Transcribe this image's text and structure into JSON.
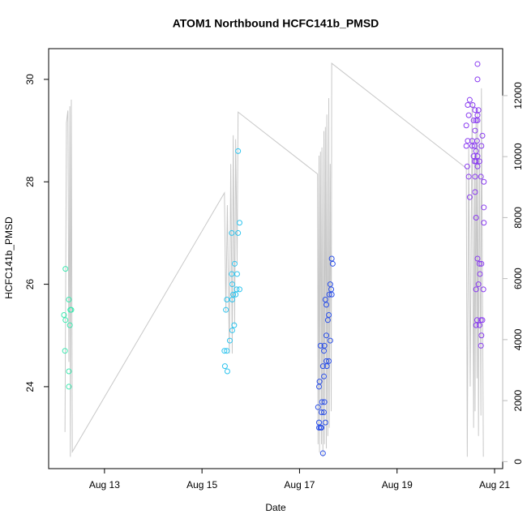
{
  "chart_data": {
    "type": "scatter",
    "title": "ATOM1 Northbound HCFC141b_PMSD",
    "x_label": "Date",
    "y_label": "HCFC141b_PMSD",
    "xlim": [
      11.855,
      21.166
    ],
    "xticks": [
      {
        "value": 13,
        "label": "Aug 13"
      },
      {
        "value": 15,
        "label": "Aug 15"
      },
      {
        "value": 17,
        "label": "Aug 17"
      },
      {
        "value": 19,
        "label": "Aug 19"
      },
      {
        "value": 21,
        "label": "Aug 21"
      }
    ],
    "ylim": [
      22.4,
      30.6
    ],
    "yticks": [
      24,
      26,
      28,
      30
    ],
    "y2lim": [
      -230,
      13540
    ],
    "y2ticks": [
      0,
      2000,
      4000,
      6000,
      8000,
      10000,
      12000
    ],
    "y2_color": "#bbbbbb",
    "series": [
      {
        "type": "line",
        "axis": "y2",
        "color": "#c8c8c8",
        "x": [
          12.19,
          12.22,
          12.25,
          12.27,
          12.29,
          12.3,
          12.32,
          12.34,
          15.46,
          15.49,
          15.52,
          15.56,
          15.59,
          15.62,
          15.64,
          15.67,
          15.69,
          15.72,
          15.74,
          17.37,
          17.38,
          17.4,
          17.41,
          17.43,
          17.45,
          17.46,
          17.48,
          17.5,
          17.51,
          17.53,
          17.55,
          17.56,
          17.58,
          17.6,
          17.61,
          17.63,
          17.65,
          17.66,
          20.42,
          20.44,
          20.47,
          20.5,
          20.54,
          20.57,
          20.59,
          20.6,
          20.62,
          20.64,
          20.65,
          20.67,
          20.69,
          20.72,
          20.73,
          20.77
        ],
        "values": [
          970,
          11110,
          11510,
          3270,
          11650,
          160,
          11870,
          320,
          8810,
          4890,
          8410,
          3540,
          9760,
          3540,
          10700,
          4490,
          10570,
          6510,
          11460,
          9430,
          570,
          10030,
          300,
          10160,
          570,
          10300,
          160,
          10840,
          570,
          10970,
          430,
          11380,
          840,
          11920,
          1110,
          9760,
          1650,
          13060,
          9620,
          160,
          10300,
          2460,
          11790,
          1110,
          10030,
          1650,
          11110,
          2730,
          11510,
          840,
          10430,
          1510,
          12240,
          160
        ]
      },
      {
        "type": "points",
        "color": "#3ee8b0",
        "x": [
          12.2,
          12.17,
          12.2,
          12.19,
          12.27,
          12.3,
          12.32,
          12.29,
          12.27,
          12.27
        ],
        "values": [
          26.3,
          25.4,
          25.3,
          24.7,
          25.7,
          25.5,
          25.5,
          25.2,
          24.3,
          24.0
        ]
      },
      {
        "type": "points",
        "color": "#2ec4ee",
        "x": [
          15.74,
          15.77,
          15.61,
          15.74,
          15.67,
          15.72,
          15.61,
          15.62,
          15.71,
          15.77,
          15.64,
          15.69,
          15.62,
          15.51,
          15.49,
          15.66,
          15.62,
          15.57,
          15.46,
          15.51,
          15.47,
          15.52
        ],
        "values": [
          28.6,
          27.2,
          27.0,
          27.0,
          26.4,
          26.2,
          26.2,
          26.0,
          25.9,
          25.9,
          25.8,
          25.8,
          25.7,
          25.7,
          25.5,
          25.2,
          25.1,
          24.9,
          24.7,
          24.7,
          24.4,
          24.3
        ]
      },
      {
        "type": "points",
        "color": "#2a4fe8",
        "x": [
          17.66,
          17.68,
          17.63,
          17.65,
          17.61,
          17.66,
          17.53,
          17.55,
          17.6,
          17.58,
          17.43,
          17.51,
          17.55,
          17.63,
          17.5,
          17.55,
          17.6,
          17.56,
          17.48,
          17.5,
          17.41,
          17.4,
          17.51,
          17.46,
          17.45,
          17.5,
          17.38,
          17.4,
          17.53,
          17.43,
          17.4,
          17.45,
          17.48
        ],
        "values": [
          26.5,
          26.4,
          26.0,
          25.9,
          25.8,
          25.8,
          25.7,
          25.6,
          25.4,
          25.3,
          24.8,
          24.8,
          25.0,
          24.9,
          24.7,
          24.5,
          24.5,
          24.4,
          24.4,
          24.2,
          24.1,
          24.0,
          23.7,
          23.7,
          23.5,
          23.5,
          23.6,
          23.3,
          23.3,
          23.2,
          23.2,
          23.2,
          22.7
        ]
      },
      {
        "type": "points",
        "color": "#8a3cf0",
        "x": [
          20.65,
          20.65,
          20.49,
          20.45,
          20.55,
          20.6,
          20.67,
          20.65,
          20.47,
          20.57,
          20.62,
          20.65,
          20.42,
          20.6,
          20.75,
          20.45,
          20.54,
          20.64,
          20.42,
          20.54,
          20.59,
          20.73,
          20.62,
          20.57,
          20.65,
          20.44,
          20.59,
          20.62,
          20.69,
          20.65,
          20.47,
          20.6,
          20.72,
          20.78,
          20.6,
          20.49,
          20.78,
          20.62,
          20.78,
          20.65,
          20.69,
          20.73,
          20.7,
          20.67,
          20.62,
          20.77,
          20.64,
          20.72,
          20.75,
          20.69,
          20.62,
          20.73,
          20.72
        ],
        "values": [
          30.3,
          30.0,
          29.6,
          29.5,
          29.5,
          29.4,
          29.4,
          29.3,
          29.3,
          29.2,
          29.2,
          29.2,
          29.1,
          29.0,
          28.9,
          28.8,
          28.8,
          28.8,
          28.7,
          28.7,
          28.7,
          28.7,
          28.6,
          28.5,
          28.5,
          28.3,
          28.4,
          28.4,
          28.4,
          28.3,
          28.1,
          28.1,
          28.1,
          28.0,
          27.8,
          27.7,
          27.5,
          27.3,
          27.2,
          26.5,
          26.4,
          26.4,
          26.2,
          26.0,
          25.9,
          25.9,
          25.3,
          25.3,
          25.3,
          25.2,
          25.2,
          25.0,
          24.8
        ]
      }
    ]
  }
}
